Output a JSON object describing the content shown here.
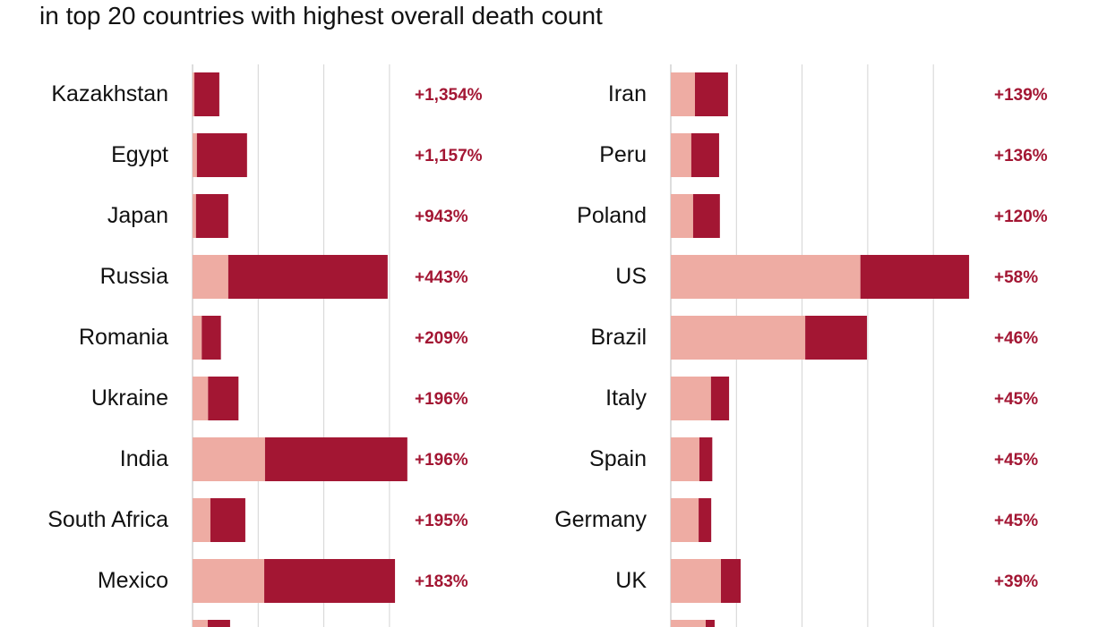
{
  "chart_data": [
    {
      "type": "bar",
      "orientation": "horizontal",
      "stacked": true,
      "subtitle": "in top 20 countries with highest overall death count",
      "grid": true,
      "gridline_step": 250000,
      "xlim": [
        0,
        1000000
      ],
      "colors": {
        "before": "#eeaca3",
        "increase": "#a31633",
        "label": "#a31633"
      },
      "categories": [
        "Kazakhstan",
        "Egypt",
        "Japan",
        "Russia",
        "Romania",
        "Ukraine",
        "India",
        "South Africa",
        "Mexico",
        ""
      ],
      "series": [
        {
          "values": [
            7000,
            16500,
            13000,
            136000,
            35000,
            59000,
            276000,
            68000,
            273000,
            58000
          ]
        },
        {
          "values": [
            95000,
            191000,
            123000,
            607000,
            73000,
            116000,
            542000,
            133000,
            498000,
            85000
          ]
        }
      ],
      "data_labels": [
        "+1,354%",
        "+1,157%",
        "+943%",
        "+443%",
        "+209%",
        "+196%",
        "+196%",
        "+195%",
        "+183%",
        ""
      ]
    },
    {
      "type": "bar",
      "orientation": "horizontal",
      "stacked": true,
      "grid": true,
      "gridline_step": 250000,
      "xlim": [
        0,
        1250000
      ],
      "colors": {
        "before": "#eeaca3",
        "increase": "#a31633",
        "label": "#a31633"
      },
      "categories": [
        "Iran",
        "Peru",
        "Poland",
        "US",
        "Brazil",
        "Italy",
        "Spain",
        "Germany",
        "UK",
        ""
      ],
      "series": [
        {
          "values": [
            92000,
            78000,
            85000,
            722000,
            512000,
            153000,
            109000,
            106000,
            191000,
            133000
          ]
        },
        {
          "values": [
            126000,
            106000,
            102000,
            414000,
            235000,
            69000,
            49000,
            48000,
            75000,
            34000
          ]
        }
      ],
      "data_labels": [
        "+139%",
        "+136%",
        "+120%",
        "+58%",
        "+46%",
        "+45%",
        "+45%",
        "+45%",
        "+39%",
        ""
      ]
    }
  ]
}
